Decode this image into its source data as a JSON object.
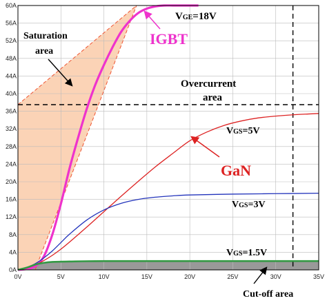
{
  "chart_data": {
    "type": "line",
    "xlim": [
      0,
      35
    ],
    "ylim": [
      0,
      60
    ],
    "x_ticks": [
      "0V",
      "5V",
      "10V",
      "15V",
      "20V",
      "25V",
      "30V",
      "35V"
    ],
    "y_ticks": [
      "0A",
      "4A",
      "8A",
      "12A",
      "16A",
      "20A",
      "24A",
      "28A",
      "32A",
      "36A",
      "40A",
      "44A",
      "48A",
      "52A",
      "56A",
      "60A"
    ],
    "grid": true,
    "overcurrent_level": 37.5,
    "overcurrent_x": 32,
    "series": [
      {
        "name": "VGE=18V",
        "color": "#ee33cc",
        "x": [
          0,
          1,
          2,
          3,
          4,
          5,
          6,
          7,
          8,
          9,
          10,
          11,
          12,
          13,
          14,
          15,
          16,
          17,
          18,
          19,
          20,
          21
        ],
        "y": [
          0,
          0.2,
          0.8,
          3,
          8,
          15,
          23,
          30,
          36.5,
          42,
          46.5,
          50.5,
          54,
          56.5,
          58.3,
          59.3,
          59.8,
          60,
          60,
          60,
          60,
          60
        ]
      },
      {
        "name": "VGS=5V",
        "color": "#dd2222",
        "x": [
          0,
          1,
          2,
          3,
          4,
          5,
          6,
          8,
          10,
          12,
          14,
          16,
          18,
          20,
          22,
          24,
          26,
          28,
          30,
          32,
          34,
          35
        ],
        "y": [
          0,
          0.4,
          1.1,
          2.1,
          3.3,
          4.7,
          6.3,
          9.7,
          13.2,
          16.7,
          20.1,
          23.4,
          26.4,
          29.3,
          31.3,
          32.8,
          33.8,
          34.5,
          34.9,
          35.2,
          35.4,
          35.5
        ]
      },
      {
        "name": "VGS=3V",
        "color": "#2233bb",
        "x": [
          0,
          1,
          2,
          3,
          4,
          5,
          6,
          8,
          10,
          12,
          14,
          16,
          18,
          20,
          25,
          30,
          35
        ],
        "y": [
          0,
          0.5,
          1.4,
          2.7,
          4.3,
          6.2,
          8.1,
          11.3,
          13.6,
          15.1,
          16.0,
          16.5,
          16.8,
          17.0,
          17.2,
          17.3,
          17.4
        ]
      },
      {
        "name": "VGS=1.5V",
        "color": "#339944",
        "x": [
          0,
          1,
          2,
          3,
          4,
          6,
          10,
          20,
          35
        ],
        "y": [
          0,
          0.5,
          1.2,
          1.6,
          1.8,
          1.9,
          2.0,
          2.0,
          2.0
        ]
      }
    ],
    "labels": {
      "vge18_prefix": "V",
      "vge18_sub": "GE",
      "vge18_suffix": "=18V",
      "igbt": "IGBT",
      "saturation_line1": "Saturation",
      "saturation_line2": "area",
      "overcurrent_line1": "Overcurrent",
      "overcurrent_line2": "area",
      "vgs5_prefix": "V",
      "vgs5_sub": "GS",
      "vgs5_suffix": "=5V",
      "gan": "GaN",
      "vgs3_prefix": "V",
      "vgs3_sub": "GS",
      "vgs3_suffix": "=3V",
      "vgs15_prefix": "V",
      "vgs15_sub": "GS",
      "vgs15_suffix": "=1.5V",
      "cutoff": "Cut-off area"
    },
    "colors": {
      "saturation_fill": "#fbd3b6",
      "saturation_outline": "#ee5533",
      "cutoff_fill": "#999999",
      "igbt_label": "#ee33cc",
      "gan_label": "#dd2222",
      "grid": "#bbbbbb",
      "frame": "#000000"
    }
  }
}
